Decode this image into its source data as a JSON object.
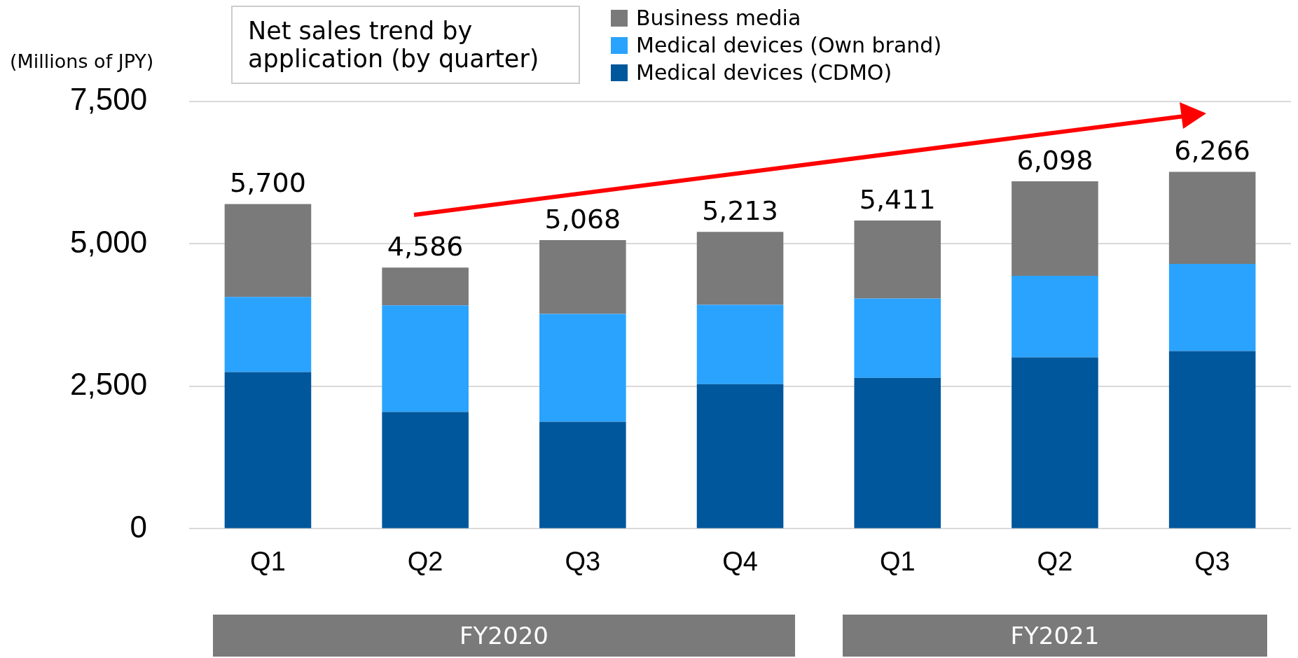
{
  "chart_data": {
    "type": "bar",
    "stacked": true,
    "title": "Net sales trend by application (by quarter)",
    "ylabel": "(Millions of JPY)",
    "categories": [
      "Q1",
      "Q2",
      "Q3",
      "Q4",
      "Q1",
      "Q2",
      "Q3"
    ],
    "series": [
      {
        "name": "Medical devices (CDMO)",
        "color": "#01579b",
        "values": [
          2750,
          2050,
          1880,
          2540,
          2650,
          3010,
          3120
        ]
      },
      {
        "name": "Medical devices (Own brand)",
        "color": "#29a3fe",
        "values": [
          1320,
          1870,
          1890,
          1390,
          1390,
          1430,
          1530
        ]
      },
      {
        "name": "Business media",
        "color": "#7a7a7a",
        "values": [
          1630,
          666,
          1298,
          1283,
          1371,
          1658,
          1616
        ]
      }
    ],
    "totals": [
      "5,700",
      "4,586",
      "5,068",
      "5,213",
      "5,411",
      "6,098",
      "6,266"
    ],
    "ylim": [
      0,
      7500
    ],
    "yticks": [
      0,
      {
        "value": 2500,
        "label": "2,500"
      },
      {
        "value": 5000,
        "label": "5,000"
      },
      {
        "value": 7500,
        "label": "7,500"
      }
    ],
    "grid": "y",
    "legend": "top",
    "annotations": [
      "FY2020",
      "FY2021"
    ]
  }
}
